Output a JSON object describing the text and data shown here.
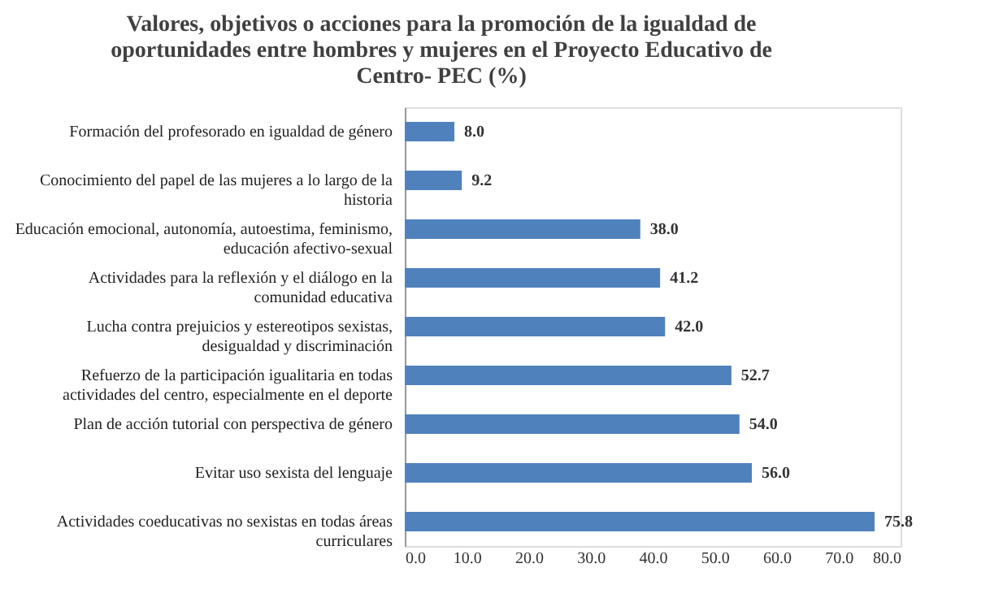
{
  "chart_data": {
    "type": "bar",
    "orientation": "horizontal",
    "title": "Valores, objetivos o acciones para la promoción de la igualdad de oportunidades entre hombres y mujeres en el Proyecto Educativo de Centro- PEC (%)",
    "categories": [
      "Formación del profesorado en igualdad de género",
      "Conocimiento del papel de las mujeres a lo largo de la historia",
      "Educación emocional, autonomía, autoestima, feminismo, educación afectivo-sexual",
      "Actividades para la reflexión y el diálogo en la comunidad educativa",
      "Lucha contra prejuicios y estereotipos sexistas, desigualdad y discriminación",
      "Refuerzo de la participación igualitaria en todas actividades del centro, especialmente en el deporte",
      "Plan de acción tutorial con perspectiva de género",
      "Evitar uso sexista del lenguaje",
      "Actividades coeducativas no sexistas en todas áreas curriculares"
    ],
    "values": [
      8.0,
      9.2,
      38.0,
      41.2,
      42.0,
      52.7,
      54.0,
      56.0,
      75.8
    ],
    "color": "#4f81bd",
    "xlim": [
      0,
      80
    ],
    "xticks": [
      {
        "value": 0,
        "label": "0.0"
      },
      {
        "value": 10,
        "label": "10.0"
      },
      {
        "value": 20,
        "label": "20.0"
      },
      {
        "value": 30,
        "label": "30.0"
      },
      {
        "value": 40,
        "label": "40.0"
      },
      {
        "value": 50,
        "label": "50.0"
      },
      {
        "value": 60,
        "label": "60.0"
      },
      {
        "value": 70,
        "label": "70.0"
      },
      {
        "value": 80,
        "label": "80.0"
      }
    ],
    "value_labels": [
      "8.0",
      "9.2",
      "38.0",
      "41.2",
      "42.0",
      "52.7",
      "54.0",
      "56.0",
      "75.8"
    ],
    "grid": false
  }
}
